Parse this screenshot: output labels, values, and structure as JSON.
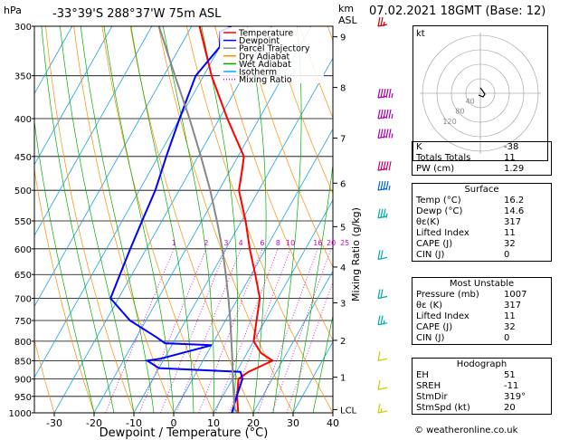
{
  "header": {
    "hpa_label": "hPa",
    "location": "-33°39'S 288°37'W 75m ASL",
    "km_label": "km",
    "asl_label": "ASL",
    "datetime": "07.02.2021 18GMT (Base: 12)"
  },
  "legend": {
    "items": [
      {
        "label": "Temperature",
        "color": "#ff0000",
        "style": "solid"
      },
      {
        "label": "Dewpoint",
        "color": "#0000ff",
        "style": "solid"
      },
      {
        "label": "Parcel Trajectory",
        "color": "#888888",
        "style": "solid"
      },
      {
        "label": "Dry Adiabat",
        "color": "#ff8c00",
        "style": "solid"
      },
      {
        "label": "Wet Adiabat",
        "color": "#00aa00",
        "style": "solid"
      },
      {
        "label": "Isotherm",
        "color": "#00aaff",
        "style": "solid"
      },
      {
        "label": "Mixing Ratio",
        "color": "#cc00cc",
        "style": "dotted"
      }
    ]
  },
  "chart_data": {
    "type": "line",
    "xlabel": "Dewpoint / Temperature (°C)",
    "ylabel": "hPa",
    "xlim": [
      -35,
      40
    ],
    "ylim": [
      1000,
      300
    ],
    "x_ticks": [
      -30,
      -20,
      -10,
      0,
      10,
      20,
      30,
      40
    ],
    "pressure_levels": [
      300,
      350,
      400,
      450,
      500,
      550,
      600,
      650,
      700,
      750,
      800,
      850,
      900,
      950,
      1000
    ],
    "km_ticks": [
      {
        "label": "9",
        "p": 310
      },
      {
        "label": "8",
        "p": 363
      },
      {
        "label": "7",
        "p": 425
      },
      {
        "label": "6",
        "p": 489
      },
      {
        "label": "5",
        "p": 560
      },
      {
        "label": "4",
        "p": 635
      },
      {
        "label": "3",
        "p": 710
      },
      {
        "label": "2",
        "p": 798
      },
      {
        "label": "1",
        "p": 895
      },
      {
        "label": "LCL",
        "p": 990
      }
    ],
    "mixing_ratio_axis_label": "Mixing Ratio (g/kg)",
    "mixing_ratio_labels": [
      "1",
      "2",
      "3",
      "4",
      "6",
      "8",
      "10",
      "16",
      "20",
      "25"
    ],
    "mixing_ratio_values": [
      1,
      2,
      3,
      4,
      6,
      8,
      10,
      16,
      20,
      25
    ],
    "series": [
      {
        "name": "Temperature",
        "color": "#ff0000",
        "points": [
          [
            1000,
            16.2
          ],
          [
            950,
            13.6
          ],
          [
            900,
            11.5
          ],
          [
            880,
            13
          ],
          [
            850,
            17.5
          ],
          [
            830,
            13.5
          ],
          [
            800,
            10
          ],
          [
            750,
            7.8
          ],
          [
            700,
            5.5
          ],
          [
            650,
            1
          ],
          [
            600,
            -4
          ],
          [
            550,
            -9
          ],
          [
            500,
            -15
          ],
          [
            470,
            -17
          ],
          [
            450,
            -18.5
          ],
          [
            400,
            -28
          ],
          [
            350,
            -38
          ],
          [
            300,
            -48
          ]
        ]
      },
      {
        "name": "Dewpoint",
        "color": "#0000ff",
        "points": [
          [
            1000,
            14.6
          ],
          [
            950,
            13.5
          ],
          [
            900,
            12.5
          ],
          [
            880,
            11
          ],
          [
            870,
            -10
          ],
          [
            850,
            -14
          ],
          [
            845,
            -11
          ],
          [
            810,
            0
          ],
          [
            805,
            -12
          ],
          [
            790,
            -15
          ],
          [
            750,
            -24
          ],
          [
            700,
            -32
          ],
          [
            650,
            -33
          ],
          [
            600,
            -34
          ],
          [
            550,
            -35
          ],
          [
            500,
            -36
          ],
          [
            450,
            -38
          ],
          [
            400,
            -40
          ],
          [
            350,
            -42
          ],
          [
            320,
            -40
          ],
          [
            305,
            -42
          ],
          [
            300,
            -40
          ]
        ]
      },
      {
        "name": "Parcel Trajectory",
        "color": "#888888",
        "points": [
          [
            1000,
            16.2
          ],
          [
            990,
            14.9
          ],
          [
            950,
            12.8
          ],
          [
            900,
            10.1
          ],
          [
            850,
            7.4
          ],
          [
            800,
            4.4
          ],
          [
            750,
            1.2
          ],
          [
            700,
            -2.4
          ],
          [
            650,
            -6.4
          ],
          [
            600,
            -10.9
          ],
          [
            550,
            -16.2
          ],
          [
            500,
            -22.2
          ],
          [
            450,
            -29.3
          ],
          [
            400,
            -37.5
          ],
          [
            350,
            -47.2
          ],
          [
            300,
            -58.2
          ]
        ]
      }
    ],
    "skew_degC_at_top": 54.5
  },
  "wind_barbs": [
    {
      "p": 300,
      "color": "#cc0000",
      "speed_kt": 15
    },
    {
      "p": 375,
      "color": "#aa00aa",
      "speed_kt": 45
    },
    {
      "p": 400,
      "color": "#aa00aa",
      "speed_kt": 45
    },
    {
      "p": 425,
      "color": "#aa00aa",
      "speed_kt": 45
    },
    {
      "p": 470,
      "color": "#cc0066",
      "speed_kt": 50
    },
    {
      "p": 500,
      "color": "#0066cc",
      "speed_kt": 35
    },
    {
      "p": 545,
      "color": "#00aaaa",
      "speed_kt": 25
    },
    {
      "p": 620,
      "color": "#00aaaa",
      "speed_kt": 20
    },
    {
      "p": 700,
      "color": "#00aaaa",
      "speed_kt": 20
    },
    {
      "p": 760,
      "color": "#00aaaa",
      "speed_kt": 15
    },
    {
      "p": 850,
      "color": "#cccc00",
      "speed_kt": 10
    },
    {
      "p": 930,
      "color": "#cccc00",
      "speed_kt": 10
    },
    {
      "p": 1000,
      "color": "#cccc00",
      "speed_kt": 5
    }
  ],
  "hodograph": {
    "label": "kt",
    "rings": [
      "20",
      "40",
      "60",
      "80",
      "120"
    ],
    "ring_labels": [
      "40",
      "80",
      "120"
    ],
    "points": [
      [
        0,
        -6
      ],
      [
        3,
        -2
      ],
      [
        5,
        1
      ],
      [
        3,
        4
      ],
      [
        -2,
        2
      ]
    ]
  },
  "indices": [
    {
      "label": "K",
      "value": "-38"
    },
    {
      "label": "Totals Totals",
      "value": "11"
    },
    {
      "label": "PW (cm)",
      "value": "1.29"
    }
  ],
  "surface": {
    "title": "Surface",
    "rows": [
      {
        "label": "Temp (°C)",
        "value": "16.2"
      },
      {
        "label": "Dewp (°C)",
        "value": "14.6"
      },
      {
        "label": "θε(K)",
        "value": "317"
      },
      {
        "label": "Lifted Index",
        "value": "11"
      },
      {
        "label": "CAPE (J)",
        "value": "32"
      },
      {
        "label": "CIN (J)",
        "value": "0"
      }
    ]
  },
  "most_unstable": {
    "title": "Most Unstable",
    "rows": [
      {
        "label": "Pressure (mb)",
        "value": "1007"
      },
      {
        "label": "θε (K)",
        "value": "317"
      },
      {
        "label": "Lifted Index",
        "value": "11"
      },
      {
        "label": "CAPE (J)",
        "value": "32"
      },
      {
        "label": "CIN (J)",
        "value": "0"
      }
    ]
  },
  "hodograph_table": {
    "title": "Hodograph",
    "rows": [
      {
        "label": "EH",
        "value": "51"
      },
      {
        "label": "SREH",
        "value": "-11"
      },
      {
        "label": "StmDir",
        "value": "319°"
      },
      {
        "label": "StmSpd (kt)",
        "value": "20"
      }
    ]
  },
  "footer": "© weatheronline.co.uk"
}
